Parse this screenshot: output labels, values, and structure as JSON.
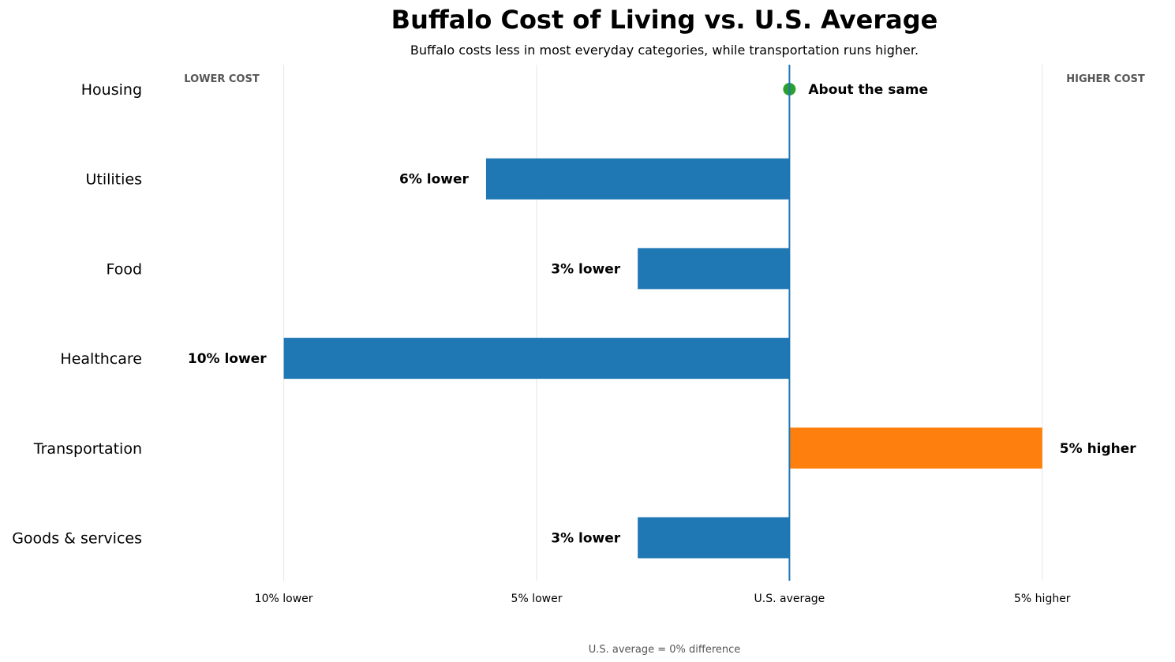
{
  "chart_data": {
    "type": "bar",
    "orientation": "horizontal",
    "title": "Buffalo Cost of Living vs. U.S. Average",
    "subtitle": "Buffalo costs less in most everyday categories, while transportation runs higher.",
    "categories": [
      "Housing",
      "Utilities",
      "Food",
      "Healthcare",
      "Transportation",
      "Goods & services"
    ],
    "values": [
      0,
      -6,
      -3,
      -10,
      5,
      -3
    ],
    "data_labels": [
      "About the same",
      "6% lower",
      "3% lower",
      "10% lower",
      "5% higher",
      "3% lower"
    ],
    "xlim": [
      -12.6,
      7.5
    ],
    "x_ticks": [
      {
        "value": -10,
        "label": "10% lower"
      },
      {
        "value": -5,
        "label": "5% lower"
      },
      {
        "value": 0,
        "label": "U.S. average"
      },
      {
        "value": 5,
        "label": "5% higher"
      }
    ],
    "side_labels": {
      "left": "LOWER COST",
      "right": "HIGHER COST"
    },
    "footnote": "U.S. average = 0% difference",
    "grid": true,
    "colors": {
      "lower": "#1f77b4",
      "higher": "#ff7f0e",
      "same": "#2ca02c",
      "baseline": "#1f77b4",
      "grid": "#e6e6e6"
    }
  }
}
